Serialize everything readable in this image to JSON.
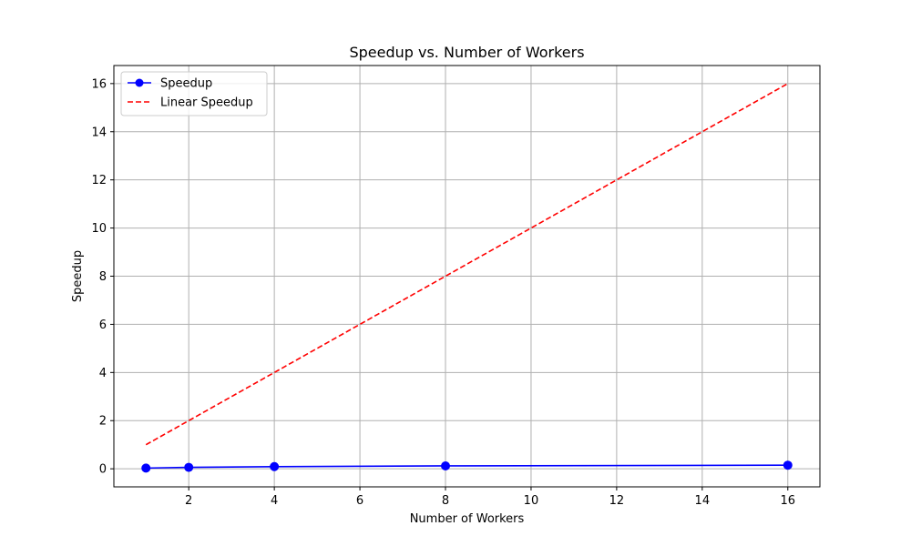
{
  "chart_data": {
    "type": "line",
    "title": "Speedup vs. Number of Workers",
    "xlabel": "Number of Workers",
    "ylabel": "Speedup",
    "xlim": [
      0.25,
      16.75
    ],
    "ylim": [
      -0.75,
      16.75
    ],
    "xticks": [
      2,
      4,
      6,
      8,
      10,
      12,
      14,
      16
    ],
    "yticks": [
      0,
      2,
      4,
      6,
      8,
      10,
      12,
      14,
      16
    ],
    "grid": true,
    "legend_position": "top-left",
    "series": [
      {
        "name": "Speedup",
        "color": "#0000ff",
        "style": "solid",
        "marker": "circle",
        "x": [
          1,
          2,
          4,
          8,
          16
        ],
        "y": [
          0.03,
          0.06,
          0.09,
          0.12,
          0.15
        ]
      },
      {
        "name": "Linear Speedup",
        "color": "#ff0000",
        "style": "dashed",
        "marker": "none",
        "x": [
          1,
          2,
          4,
          8,
          16
        ],
        "y": [
          1,
          2,
          4,
          8,
          16
        ]
      }
    ]
  }
}
